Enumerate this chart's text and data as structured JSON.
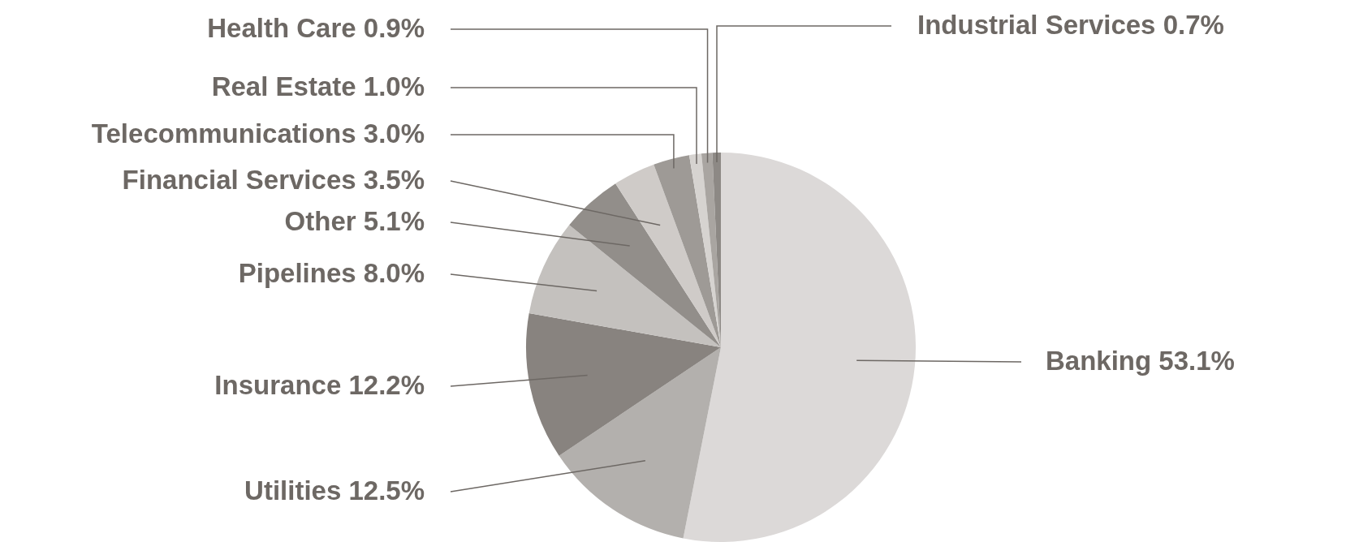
{
  "chart_data": {
    "type": "pie",
    "categories": [
      "Banking",
      "Utilities",
      "Insurance",
      "Pipelines",
      "Other",
      "Financial Services",
      "Telecommunications",
      "Real Estate",
      "Health Care",
      "Industrial Services"
    ],
    "values": [
      53.1,
      12.5,
      12.2,
      8.0,
      5.1,
      3.5,
      3.0,
      1.0,
      0.9,
      0.7
    ],
    "value_labels": [
      "53.1%",
      "12.5%",
      "12.2%",
      "8.0%",
      "5.1%",
      "3.5%",
      "3.0%",
      "1.0%",
      "0.9%",
      "0.7%"
    ],
    "colors": [
      "#dcd9d8",
      "#b3b0ad",
      "#88837f",
      "#c4c1be",
      "#928e8a",
      "#cfcbc8",
      "#9e9a96",
      "#d6d3d0",
      "#a9a5a1",
      "#8d8985"
    ],
    "legend": false
  }
}
